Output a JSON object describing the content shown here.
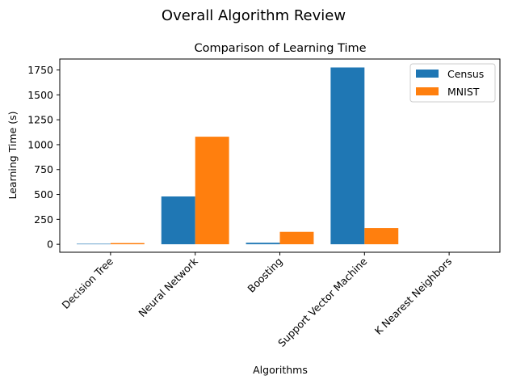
{
  "figure": {
    "suptitle": "Overall Algorithm Review"
  },
  "chart_data": {
    "type": "bar",
    "title": "Comparison of Learning Time",
    "xlabel": "Algorithms",
    "ylabel": "Learning Time (s)",
    "categories": [
      "Decision Tree",
      "Neural Network",
      "Boosting",
      "Support Vector Machine",
      "K Nearest Neighbors"
    ],
    "series": [
      {
        "name": "Census",
        "color": "#1f77b4",
        "values": [
          5,
          480,
          15,
          1775,
          0
        ]
      },
      {
        "name": "MNIST",
        "color": "#ff7f0e",
        "values": [
          12,
          1080,
          125,
          163,
          0
        ]
      }
    ],
    "ylim": [
      -80,
      1860
    ],
    "yticks": [
      0,
      250,
      500,
      750,
      1000,
      1250,
      1500,
      1750
    ],
    "grid": false,
    "legend_position": "top-right"
  }
}
